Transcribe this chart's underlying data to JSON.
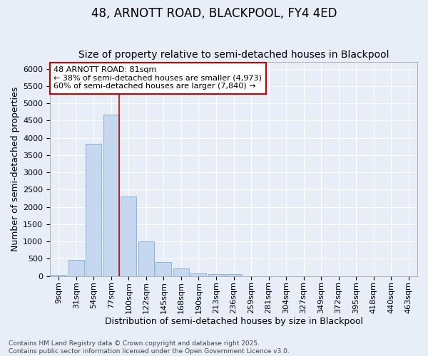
{
  "title": "48, ARNOTT ROAD, BLACKPOOL, FY4 4ED",
  "subtitle": "Size of property relative to semi-detached houses in Blackpool",
  "xlabel": "Distribution of semi-detached houses by size in Blackpool",
  "ylabel": "Number of semi-detached properties",
  "categories": [
    "9sqm",
    "31sqm",
    "54sqm",
    "77sqm",
    "100sqm",
    "122sqm",
    "145sqm",
    "168sqm",
    "190sqm",
    "213sqm",
    "236sqm",
    "259sqm",
    "281sqm",
    "304sqm",
    "327sqm",
    "349sqm",
    "372sqm",
    "395sqm",
    "418sqm",
    "440sqm",
    "463sqm"
  ],
  "values": [
    40,
    460,
    3820,
    4680,
    2300,
    1005,
    400,
    225,
    80,
    60,
    50,
    0,
    0,
    0,
    0,
    0,
    0,
    0,
    0,
    0,
    0
  ],
  "bar_color": "#c5d8f0",
  "bar_edgecolor": "#7badd4",
  "vline_color": "#cc0000",
  "vline_x_idx": 3,
  "box_text_line1": "48 ARNOTT ROAD: 81sqm",
  "box_text_line2": "← 38% of semi-detached houses are smaller (4,973)",
  "box_text_line3": "60% of semi-detached houses are larger (7,840) →",
  "ylim": [
    0,
    6200
  ],
  "yticks": [
    0,
    500,
    1000,
    1500,
    2000,
    2500,
    3000,
    3500,
    4000,
    4500,
    5000,
    5500,
    6000
  ],
  "background_color": "#e8eef8",
  "grid_color": "#ffffff",
  "footnote": "Contains HM Land Registry data © Crown copyright and database right 2025.\nContains public sector information licensed under the Open Government Licence v3.0.",
  "title_fontsize": 12,
  "subtitle_fontsize": 10,
  "axis_label_fontsize": 9,
  "tick_fontsize": 8,
  "footnote_fontsize": 6.5
}
